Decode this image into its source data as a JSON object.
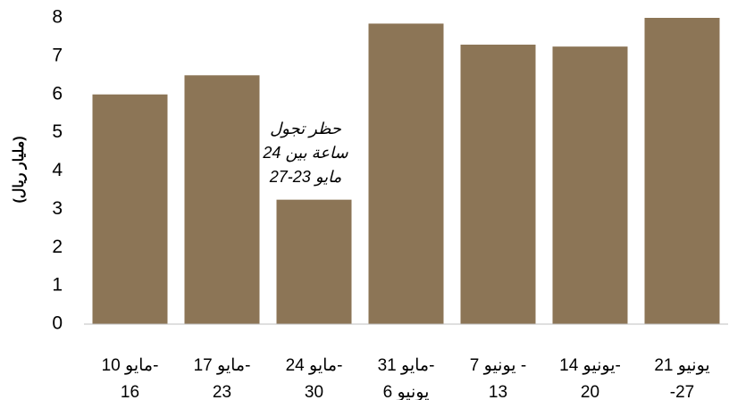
{
  "chart_data": {
    "type": "bar",
    "y_axis_label": "(مليار ريال)",
    "categories": [
      [
        "مايو 10-",
        "16"
      ],
      [
        "مايو 17-",
        "23"
      ],
      [
        "مايو 24-",
        "30"
      ],
      [
        "مايو 31-",
        "يونيو 6"
      ],
      [
        "يونيو 7 -",
        "13"
      ],
      [
        "يونيو 14-",
        "20"
      ],
      [
        "يونيو 21",
        "-27"
      ]
    ],
    "values": [
      6.0,
      6.5,
      3.25,
      7.85,
      7.3,
      7.25,
      8.0
    ],
    "color": "#8c7556",
    "ylim": [
      0,
      8
    ],
    "yticks": [
      0,
      1,
      2,
      3,
      4,
      5,
      6,
      7,
      8
    ],
    "grid": false,
    "annotation": [
      "حظر تجول",
      "24 ساعة بين",
      "مايو 23-27"
    ]
  }
}
